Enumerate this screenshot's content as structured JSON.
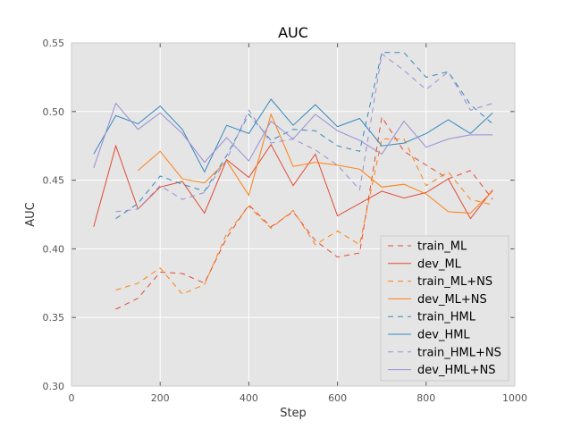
{
  "chart_data": {
    "type": "line",
    "title": "AUC",
    "xlabel": "Step",
    "ylabel": "AUC",
    "xlim": [
      0,
      1000
    ],
    "ylim": [
      0.3,
      0.55
    ],
    "xticks": [
      0,
      200,
      400,
      600,
      800,
      1000
    ],
    "yticks": [
      0.3,
      0.35,
      0.4,
      0.45,
      0.5,
      0.55
    ],
    "xtick_labels": [
      "0",
      "200",
      "400",
      "600",
      "800",
      "1000"
    ],
    "ytick_labels": [
      "0.30",
      "0.35",
      "0.40",
      "0.45",
      "0.50",
      "0.55"
    ],
    "grid": true,
    "legend_position": "lower-right",
    "series": [
      {
        "name": "train_ML",
        "color": "#e24a33",
        "dashed": true,
        "points": [
          [
            100,
            0.356
          ],
          [
            150,
            0.364
          ],
          [
            200,
            0.383
          ],
          [
            250,
            0.382
          ],
          [
            300,
            0.375
          ],
          [
            350,
            0.408
          ],
          [
            400,
            0.432
          ],
          [
            450,
            0.416
          ],
          [
            500,
            0.427
          ],
          [
            550,
            0.406
          ],
          [
            600,
            0.394
          ],
          [
            650,
            0.397
          ],
          [
            700,
            0.496
          ],
          [
            750,
            0.471
          ],
          [
            800,
            0.461
          ],
          [
            850,
            0.451
          ],
          [
            900,
            0.457
          ],
          [
            950,
            0.436
          ]
        ]
      },
      {
        "name": "dev_ML",
        "color": "#e24a33",
        "dashed": false,
        "points": [
          [
            50,
            0.416
          ],
          [
            100,
            0.475
          ],
          [
            150,
            0.429
          ],
          [
            200,
            0.445
          ],
          [
            250,
            0.449
          ],
          [
            300,
            0.426
          ],
          [
            350,
            0.465
          ],
          [
            400,
            0.452
          ],
          [
            450,
            0.476
          ],
          [
            500,
            0.446
          ],
          [
            550,
            0.469
          ],
          [
            600,
            0.424
          ],
          [
            650,
            0.433
          ],
          [
            700,
            0.442
          ],
          [
            750,
            0.437
          ],
          [
            800,
            0.441
          ],
          [
            850,
            0.451
          ],
          [
            900,
            0.422
          ],
          [
            950,
            0.443
          ]
        ]
      },
      {
        "name": "train_ML+NS",
        "color": "#ff7f0e",
        "dashed": true,
        "points": [
          [
            100,
            0.37
          ],
          [
            150,
            0.375
          ],
          [
            200,
            0.386
          ],
          [
            250,
            0.367
          ],
          [
            300,
            0.374
          ],
          [
            350,
            0.411
          ],
          [
            400,
            0.431
          ],
          [
            450,
            0.415
          ],
          [
            500,
            0.428
          ],
          [
            550,
            0.403
          ],
          [
            600,
            0.413
          ],
          [
            650,
            0.403
          ],
          [
            700,
            0.48
          ],
          [
            750,
            0.48
          ],
          [
            800,
            0.446
          ],
          [
            850,
            0.456
          ],
          [
            900,
            0.436
          ],
          [
            950,
            0.432
          ]
        ]
      },
      {
        "name": "dev_ML+NS",
        "color": "#ff7f0e",
        "dashed": false,
        "points": [
          [
            150,
            0.457
          ],
          [
            200,
            0.471
          ],
          [
            250,
            0.451
          ],
          [
            300,
            0.448
          ],
          [
            350,
            0.464
          ],
          [
            400,
            0.439
          ],
          [
            450,
            0.498
          ],
          [
            500,
            0.46
          ],
          [
            550,
            0.463
          ],
          [
            600,
            0.461
          ],
          [
            650,
            0.458
          ],
          [
            700,
            0.445
          ],
          [
            750,
            0.447
          ],
          [
            800,
            0.44
          ],
          [
            850,
            0.427
          ],
          [
            900,
            0.426
          ],
          [
            950,
            0.442
          ]
        ]
      },
      {
        "name": "train_HML",
        "color": "#348abd",
        "dashed": true,
        "points": [
          [
            100,
            0.422
          ],
          [
            150,
            0.433
          ],
          [
            200,
            0.453
          ],
          [
            250,
            0.447
          ],
          [
            300,
            0.442
          ],
          [
            350,
            0.468
          ],
          [
            400,
            0.498
          ],
          [
            450,
            0.479
          ],
          [
            500,
            0.487
          ],
          [
            550,
            0.486
          ],
          [
            600,
            0.475
          ],
          [
            650,
            0.471
          ],
          [
            700,
            0.543
          ],
          [
            750,
            0.543
          ],
          [
            800,
            0.525
          ],
          [
            850,
            0.529
          ],
          [
            900,
            0.505
          ],
          [
            950,
            0.491
          ]
        ]
      },
      {
        "name": "dev_HML",
        "color": "#348abd",
        "dashed": false,
        "points": [
          [
            50,
            0.469
          ],
          [
            100,
            0.497
          ],
          [
            150,
            0.491
          ],
          [
            200,
            0.504
          ],
          [
            250,
            0.487
          ],
          [
            300,
            0.456
          ],
          [
            350,
            0.49
          ],
          [
            400,
            0.484
          ],
          [
            450,
            0.509
          ],
          [
            500,
            0.49
          ],
          [
            550,
            0.505
          ],
          [
            600,
            0.489
          ],
          [
            650,
            0.495
          ],
          [
            700,
            0.475
          ],
          [
            750,
            0.477
          ],
          [
            800,
            0.484
          ],
          [
            850,
            0.494
          ],
          [
            900,
            0.484
          ],
          [
            950,
            0.499
          ]
        ]
      },
      {
        "name": "train_HML+NS",
        "color": "#988ed5",
        "dashed": true,
        "points": [
          [
            100,
            0.427
          ],
          [
            150,
            0.429
          ],
          [
            200,
            0.446
          ],
          [
            250,
            0.436
          ],
          [
            300,
            0.441
          ],
          [
            350,
            0.465
          ],
          [
            400,
            0.501
          ],
          [
            450,
            0.477
          ],
          [
            500,
            0.48
          ],
          [
            550,
            0.472
          ],
          [
            600,
            0.461
          ],
          [
            650,
            0.443
          ],
          [
            700,
            0.542
          ],
          [
            750,
            0.53
          ],
          [
            800,
            0.516
          ],
          [
            850,
            0.529
          ],
          [
            900,
            0.501
          ],
          [
            950,
            0.506
          ]
        ]
      },
      {
        "name": "dev_HML+NS",
        "color": "#988ed5",
        "dashed": false,
        "points": [
          [
            50,
            0.459
          ],
          [
            100,
            0.506
          ],
          [
            150,
            0.487
          ],
          [
            200,
            0.499
          ],
          [
            250,
            0.484
          ],
          [
            300,
            0.463
          ],
          [
            350,
            0.481
          ],
          [
            400,
            0.464
          ],
          [
            450,
            0.493
          ],
          [
            500,
            0.48
          ],
          [
            550,
            0.498
          ],
          [
            600,
            0.486
          ],
          [
            650,
            0.479
          ],
          [
            700,
            0.469
          ],
          [
            750,
            0.493
          ],
          [
            800,
            0.474
          ],
          [
            850,
            0.48
          ],
          [
            900,
            0.483
          ],
          [
            950,
            0.483
          ]
        ]
      }
    ]
  }
}
